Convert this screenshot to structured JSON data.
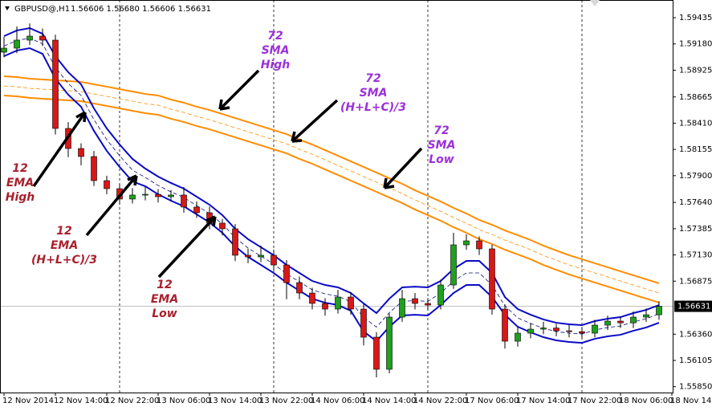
{
  "chart_data": {
    "type": "candlestick",
    "title": "GBPUSD@,H1",
    "subtitle": "1.56606 1.56680 1.56606 1.56631",
    "categories": [
      "12 Nov 2014",
      null,
      null,
      null,
      "12 Nov 14:00",
      null,
      null,
      null,
      "12 Nov 22:00",
      null,
      null,
      null,
      "13 Nov 06:00",
      null,
      null,
      null,
      "13 Nov 14:00",
      null,
      null,
      null,
      "13 Nov 22:00",
      null,
      null,
      null,
      "14 Nov 06:00",
      null,
      null,
      null,
      "14 Nov 14:00",
      null,
      null,
      null,
      "14 Nov 22:00",
      null,
      null,
      null,
      "17 Nov 06:00",
      null,
      null,
      null,
      "17 Nov 14:00",
      null,
      null,
      null,
      "17 Nov 22:00",
      null,
      null,
      null,
      "18 Nov 06:00",
      null,
      null,
      null,
      "18 Nov 14:00"
    ],
    "open": [
      1.591,
      1.59139,
      1.59217,
      1.59256,
      1.59217,
      1.58359,
      1.58164,
      1.58086,
      1.57852,
      1.57774,
      1.57673,
      1.57712,
      1.57719,
      1.57696,
      1.57712,
      1.57595,
      1.5754,
      1.57439,
      1.57384,
      1.57127,
      1.57111,
      1.57127,
      1.57033,
      1.56861,
      1.5676,
      1.56659,
      1.56604,
      1.56721,
      1.56604,
      1.56331,
      1.56019,
      1.56526,
      1.56705,
      1.56659,
      1.56643,
      1.56838,
      1.57228,
      1.57267,
      1.57189,
      1.56604,
      1.56292,
      1.5637,
      1.56409,
      1.5642,
      1.56393,
      1.56385,
      1.5637,
      1.56448,
      1.56487,
      1.5647,
      1.56526,
      1.56549,
      null
    ],
    "high": [
      1.5925,
      1.5935,
      1.5938,
      1.5933,
      1.5927,
      1.5842,
      1.58215,
      1.5814,
      1.579,
      1.5782,
      1.5778,
      1.5779,
      1.5777,
      1.5776,
      1.5779,
      1.5765,
      1.576,
      1.5748,
      1.5743,
      1.5719,
      1.5722,
      1.5718,
      1.5708,
      1.5692,
      1.5681,
      1.5671,
      1.5679,
      1.5677,
      1.5665,
      1.5638,
      1.5656,
      1.5679,
      1.5676,
      1.5671,
      1.5689,
      1.57345,
      1.5733,
      1.5731,
      1.5723,
      1.5665,
      1.5643,
      1.5647,
      1.5648,
      1.5646,
      1.5645,
      1.5643,
      1.565,
      1.5654,
      1.5653,
      1.5658,
      1.5661,
      1.5668,
      null
    ],
    "low": [
      1.5905,
      1.5909,
      1.5917,
      1.5916,
      1.583,
      1.5808,
      1.58,
      1.578,
      1.5772,
      1.5762,
      1.5763,
      1.5766,
      1.5764,
      1.5765,
      1.5754,
      1.5749,
      1.5738,
      1.5732,
      1.5707,
      1.5705,
      1.5706,
      1.5698,
      1.567,
      1.567,
      1.566,
      1.5654,
      1.5656,
      1.5655,
      1.5625,
      1.55941,
      1.5598,
      1.5648,
      1.566,
      1.5659,
      1.566,
      1.568,
      1.5718,
      1.5713,
      1.5655,
      1.5622,
      1.5624,
      1.5632,
      1.5636,
      1.5634,
      1.5633,
      1.5632,
      1.5633,
      1.564,
      1.5642,
      1.5642,
      1.5648,
      1.565,
      null
    ],
    "close": [
      1.59139,
      1.59217,
      1.59256,
      1.59217,
      1.58359,
      1.58164,
      1.58086,
      1.57852,
      1.57774,
      1.57673,
      1.57712,
      1.57719,
      1.57696,
      1.57712,
      1.57595,
      1.5754,
      1.57439,
      1.57384,
      1.57127,
      1.57111,
      1.57127,
      1.57033,
      1.56861,
      1.5676,
      1.56659,
      1.56604,
      1.56721,
      1.56604,
      1.56331,
      1.56019,
      1.56526,
      1.56705,
      1.56659,
      1.56643,
      1.56838,
      1.57228,
      1.57267,
      1.57189,
      1.56604,
      1.56292,
      1.5637,
      1.56409,
      1.5642,
      1.56393,
      1.56385,
      1.5637,
      1.56448,
      1.56487,
      1.5647,
      1.56526,
      1.56549,
      1.56631,
      null
    ],
    "up_color": "#1fa01f",
    "down_color": "#d81818",
    "lines": [
      {
        "color": "#ff8c00",
        "style": "solid",
        "values": [
          1.58866,
          1.58858,
          1.58843,
          1.58835,
          1.58827,
          1.58819,
          1.58811,
          1.58788,
          1.58765,
          1.58741,
          1.58718,
          1.58694,
          1.58679,
          1.5864,
          1.58609,
          1.5857,
          1.58538,
          1.58499,
          1.5846,
          1.58421,
          1.58382,
          1.58343,
          1.58304,
          1.5825,
          1.58203,
          1.58148,
          1.58094,
          1.58039,
          1.57985,
          1.5793,
          1.57875,
          1.57821,
          1.57758,
          1.57704,
          1.57649,
          1.57587,
          1.57532,
          1.5747,
          1.57423,
          1.57368,
          1.57322,
          1.57275,
          1.5722,
          1.57173,
          1.57127,
          1.57088,
          1.57049,
          1.5701,
          1.56971,
          1.56932,
          1.56893,
          1.56854,
          null
        ]
      },
      {
        "color": "#ff8c00",
        "style": "dashed",
        "values": [
          1.58772,
          1.58764,
          1.58749,
          1.58741,
          1.58733,
          1.58725,
          1.58717,
          1.58694,
          1.58671,
          1.58647,
          1.58624,
          1.586,
          1.58585,
          1.58546,
          1.58515,
          1.58476,
          1.58444,
          1.58405,
          1.58366,
          1.58327,
          1.58288,
          1.58249,
          1.5821,
          1.58156,
          1.58109,
          1.58054,
          1.58,
          1.57945,
          1.57891,
          1.57836,
          1.57781,
          1.57727,
          1.57664,
          1.5761,
          1.57555,
          1.57493,
          1.57438,
          1.57376,
          1.57329,
          1.57274,
          1.57228,
          1.57181,
          1.57126,
          1.57079,
          1.57033,
          1.56994,
          1.56955,
          1.56916,
          1.56877,
          1.56838,
          1.56799,
          1.5676,
          null
        ]
      },
      {
        "color": "#ff8c00",
        "style": "solid",
        "values": [
          1.58679,
          1.58671,
          1.58656,
          1.58648,
          1.5864,
          1.58632,
          1.58624,
          1.58601,
          1.58578,
          1.58554,
          1.58531,
          1.58507,
          1.58492,
          1.58453,
          1.58422,
          1.58383,
          1.58351,
          1.58312,
          1.58273,
          1.58234,
          1.58195,
          1.58156,
          1.58117,
          1.58063,
          1.58016,
          1.57961,
          1.57907,
          1.57852,
          1.57798,
          1.57743,
          1.57688,
          1.57634,
          1.57571,
          1.57517,
          1.57462,
          1.574,
          1.57345,
          1.57283,
          1.57236,
          1.57181,
          1.57135,
          1.57088,
          1.57033,
          1.56986,
          1.5694,
          1.56901,
          1.56862,
          1.56823,
          1.56784,
          1.56745,
          1.56706,
          1.56667,
          null
        ]
      },
      {
        "color": "#0a0ac8",
        "style": "solid",
        "values": [
          1.59256,
          1.59311,
          1.59334,
          1.59279,
          1.59061,
          1.58905,
          1.58788,
          1.58554,
          1.58359,
          1.58203,
          1.58063,
          1.57969,
          1.57891,
          1.57829,
          1.57774,
          1.57696,
          1.57618,
          1.57517,
          1.57384,
          1.57283,
          1.57205,
          1.57127,
          1.57033,
          1.56955,
          1.56877,
          1.56838,
          1.56815,
          1.5676,
          1.56659,
          1.56565,
          1.56705,
          1.56815,
          1.56822,
          1.56815,
          1.56877,
          1.56994,
          1.57072,
          1.57072,
          1.56955,
          1.56721,
          1.56604,
          1.56549,
          1.56503,
          1.56471,
          1.56456,
          1.56448,
          1.56487,
          1.5651,
          1.56526,
          1.56565,
          1.56596,
          1.56643,
          null
        ]
      },
      {
        "color": "#0a0a80",
        "style": "dashed",
        "values": [
          1.59159,
          1.59214,
          1.59237,
          1.59182,
          1.58952,
          1.58796,
          1.58679,
          1.58445,
          1.5825,
          1.58094,
          1.57954,
          1.57883,
          1.57805,
          1.57743,
          1.57688,
          1.5761,
          1.57532,
          1.57431,
          1.57298,
          1.57197,
          1.57119,
          1.57041,
          1.56947,
          1.56869,
          1.56791,
          1.56752,
          1.56729,
          1.56674,
          1.56523,
          1.56429,
          1.56569,
          1.56679,
          1.56686,
          1.56679,
          1.5676,
          1.56877,
          1.56955,
          1.56955,
          1.56838,
          1.56635,
          1.56518,
          1.56464,
          1.56417,
          1.56386,
          1.5637,
          1.56362,
          1.56401,
          1.56425,
          1.5644,
          1.56479,
          1.56511,
          1.56557,
          null
        ]
      },
      {
        "color": "#0a0ac8",
        "style": "solid",
        "values": [
          1.59061,
          1.59116,
          1.59139,
          1.59084,
          1.58843,
          1.58687,
          1.5857,
          1.58336,
          1.58141,
          1.57985,
          1.57844,
          1.57797,
          1.57719,
          1.57657,
          1.57602,
          1.57524,
          1.57446,
          1.57345,
          1.57212,
          1.57111,
          1.57033,
          1.56955,
          1.56861,
          1.56783,
          1.56705,
          1.56666,
          1.56643,
          1.56588,
          1.56386,
          1.56292,
          1.56432,
          1.56542,
          1.56549,
          1.56542,
          1.56643,
          1.5676,
          1.56838,
          1.56838,
          1.56721,
          1.56549,
          1.56432,
          1.56378,
          1.56331,
          1.563,
          1.56284,
          1.56276,
          1.56315,
          1.56339,
          1.56354,
          1.56393,
          1.56425,
          1.56471,
          null
        ]
      }
    ],
    "ylim": [
      1.55793,
      1.59607
    ],
    "yticks": [
      1.59435,
      {
        "value": 1.5918,
        "label": "1.59180"
      },
      1.58925,
      1.58665,
      {
        "value": 1.5841,
        "label": "1.58410"
      },
      1.58155,
      {
        "value": 1.579,
        "label": "1.57900"
      },
      {
        "value": 1.5764,
        "label": "1.57640"
      },
      1.57385,
      {
        "value": 1.5713,
        "label": "1.57130"
      },
      1.56875,
      {
        "value": 1.5636,
        "label": "1.56360"
      },
      1.56105,
      {
        "value": 1.5585,
        "label": "1.55850"
      }
    ],
    "last_price": 1.56631,
    "annotations": [
      {
        "lines": [
          "72",
          "SMA",
          "High"
        ],
        "color": "#9b30d9"
      },
      {
        "lines": [
          "72",
          "SMA",
          "(H+L+C)/3"
        ],
        "color": "#9b30d9"
      },
      {
        "lines": [
          "72",
          "SMA",
          "Low"
        ],
        "color": "#9b30d9"
      },
      {
        "lines": [
          "12",
          "EMA",
          "High"
        ],
        "color": "#a8202c"
      },
      {
        "lines": [
          "12",
          "EMA",
          "(H+L+C)/3"
        ],
        "color": "#a8202c"
      },
      {
        "lines": [
          "12",
          "EMA",
          "Low"
        ],
        "color": "#a8202c"
      }
    ]
  }
}
